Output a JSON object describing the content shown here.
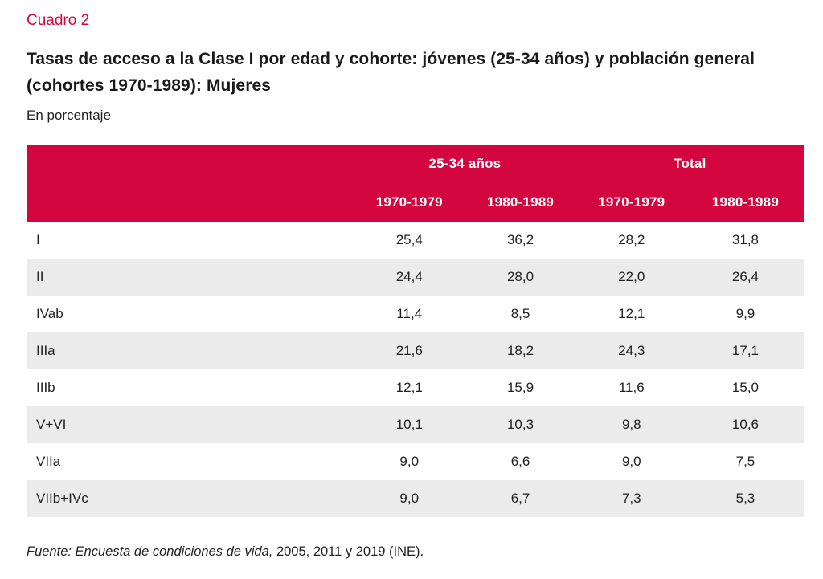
{
  "colors": {
    "accent_red": "#d4063f",
    "stripe_gray": "#ebebeb",
    "text_dark": "#1a1a1a"
  },
  "header": {
    "cuadro_label": "Cuadro 2",
    "title": "Tasas de acceso a la Clase I por edad y cohorte: jóvenes (25-34 años) y población general (cohortes 1970-1989): Mujeres",
    "subtitle": "En porcentaje"
  },
  "table": {
    "groups": [
      "25-34 años",
      "Total"
    ],
    "columns": [
      "1970-1979",
      "1980-1989",
      "1970-1979",
      "1980-1989"
    ],
    "rows": [
      {
        "label": "I",
        "values": [
          "25,4",
          "36,2",
          "28,2",
          "31,8"
        ]
      },
      {
        "label": "II",
        "values": [
          "24,4",
          "28,0",
          "22,0",
          "26,4"
        ]
      },
      {
        "label": "IVab",
        "values": [
          "11,4",
          "8,5",
          "12,1",
          "9,9"
        ]
      },
      {
        "label": "IIIa",
        "values": [
          "21,6",
          "18,2",
          "24,3",
          "17,1"
        ]
      },
      {
        "label": "IIIb",
        "values": [
          "12,1",
          "15,9",
          "11,6",
          "15,0"
        ]
      },
      {
        "label": "V+VI",
        "values": [
          "10,1",
          "10,3",
          "9,8",
          "10,6"
        ]
      },
      {
        "label": "VIIa",
        "values": [
          "9,0",
          "6,6",
          "9,0",
          "7,5"
        ]
      },
      {
        "label": "VIIb+IVc",
        "values": [
          "9,0",
          "6,7",
          "7,3",
          "5,3"
        ]
      }
    ]
  },
  "source": {
    "italic_part": "Fuente: Encuesta de condiciones de vida,",
    "regular_part": " 2005, 2011 y 2019 (INE)."
  },
  "chart_data": {
    "type": "table",
    "title": "Tasas de acceso a la Clase I por edad y cohorte: jóvenes (25-34 años) y población general (cohortes 1970-1989): Mujeres",
    "unit": "porcentaje",
    "column_groups": [
      "25-34 años",
      "25-34 años",
      "Total",
      "Total"
    ],
    "columns": [
      "1970-1979",
      "1980-1989",
      "1970-1979",
      "1980-1989"
    ],
    "row_labels": [
      "I",
      "II",
      "IVab",
      "IIIa",
      "IIIb",
      "V+VI",
      "VIIa",
      "VIIb+IVc"
    ],
    "values": [
      [
        25.4,
        36.2,
        28.2,
        31.8
      ],
      [
        24.4,
        28.0,
        22.0,
        26.4
      ],
      [
        11.4,
        8.5,
        12.1,
        9.9
      ],
      [
        21.6,
        18.2,
        24.3,
        17.1
      ],
      [
        12.1,
        15.9,
        11.6,
        15.0
      ],
      [
        10.1,
        10.3,
        9.8,
        10.6
      ],
      [
        9.0,
        6.6,
        9.0,
        7.5
      ],
      [
        9.0,
        6.7,
        7.3,
        5.3
      ]
    ],
    "source": "Fuente: Encuesta de condiciones de vida, 2005, 2011 y 2019 (INE)."
  }
}
